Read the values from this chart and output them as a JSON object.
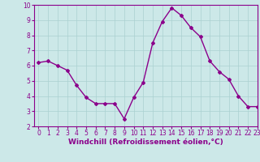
{
  "x": [
    0,
    1,
    2,
    3,
    4,
    5,
    6,
    7,
    8,
    9,
    10,
    11,
    12,
    13,
    14,
    15,
    16,
    17,
    18,
    19,
    20,
    21,
    22,
    23
  ],
  "y": [
    6.2,
    6.3,
    6.0,
    5.7,
    4.7,
    3.9,
    3.5,
    3.5,
    3.5,
    2.5,
    3.9,
    4.9,
    7.5,
    8.9,
    9.8,
    9.3,
    8.5,
    7.9,
    6.3,
    5.6,
    5.1,
    4.0,
    3.3,
    3.3
  ],
  "color": "#8B008B",
  "bg_color": "#cce8e8",
  "grid_color": "#aad0d0",
  "xlabel": "Windchill (Refroidissement éolien,°C)",
  "xlabel_fontsize": 6.5,
  "xlim": [
    -0.5,
    23
  ],
  "ylim": [
    2,
    10
  ],
  "yticks": [
    2,
    3,
    4,
    5,
    6,
    7,
    8,
    9,
    10
  ],
  "xticks": [
    0,
    1,
    2,
    3,
    4,
    5,
    6,
    7,
    8,
    9,
    10,
    11,
    12,
    13,
    14,
    15,
    16,
    17,
    18,
    19,
    20,
    21,
    22,
    23
  ],
  "tick_fontsize": 5.5,
  "line_width": 1.0,
  "marker": "D",
  "marker_size": 2.0
}
